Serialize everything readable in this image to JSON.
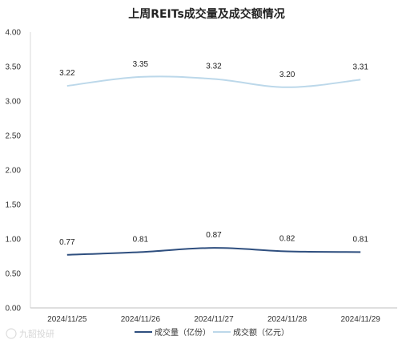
{
  "chart_data": {
    "type": "line",
    "title": "上周REITs成交量及成交额情况",
    "categories": [
      "2024/11/25",
      "2024/11/26",
      "2024/11/27",
      "2024/11/28",
      "2024/11/29"
    ],
    "ylim": [
      0,
      4
    ],
    "yticks": [
      "0.00",
      "0.50",
      "1.00",
      "1.50",
      "2.00",
      "2.50",
      "3.00",
      "3.50",
      "4.00"
    ],
    "grid": false,
    "legend": "bottom",
    "series": [
      {
        "name": "成交量（亿份）",
        "values": [
          0.77,
          0.81,
          0.87,
          0.82,
          0.81
        ],
        "labels": [
          "0.77",
          "0.81",
          "0.87",
          "0.82",
          "0.81"
        ],
        "color": "#2f4f7f"
      },
      {
        "name": "成交额（亿元）",
        "values": [
          3.22,
          3.35,
          3.32,
          3.2,
          3.31
        ],
        "labels": [
          "3.22",
          "3.35",
          "3.32",
          "3.20",
          "3.31"
        ],
        "color": "#bcd8ea"
      }
    ]
  },
  "watermark": "九韶投研"
}
